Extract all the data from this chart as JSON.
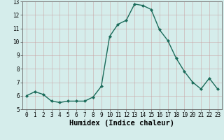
{
  "x": [
    0,
    1,
    2,
    3,
    4,
    5,
    6,
    7,
    8,
    9,
    10,
    11,
    12,
    13,
    14,
    15,
    16,
    17,
    18,
    19,
    20,
    21,
    22,
    23
  ],
  "y": [
    6.0,
    6.3,
    6.1,
    5.6,
    5.5,
    5.6,
    5.6,
    5.6,
    5.9,
    6.7,
    10.4,
    11.3,
    11.6,
    12.8,
    12.7,
    12.4,
    10.9,
    10.1,
    8.8,
    7.8,
    7.0,
    6.5,
    7.3,
    6.5
  ],
  "line_color": "#1a6b5a",
  "marker": "D",
  "marker_size": 2.0,
  "bg_color": "#d5edeb",
  "grid_color_major": "#c0d8d4",
  "grid_color_minor": "#c8dedd",
  "xlabel": "Humidex (Indice chaleur)",
  "ylim": [
    5,
    13
  ],
  "xlim": [
    -0.5,
    23.5
  ],
  "yticks": [
    5,
    6,
    7,
    8,
    9,
    10,
    11,
    12,
    13
  ],
  "xticks": [
    0,
    1,
    2,
    3,
    4,
    5,
    6,
    7,
    8,
    9,
    10,
    11,
    12,
    13,
    14,
    15,
    16,
    17,
    18,
    19,
    20,
    21,
    22,
    23
  ],
  "tick_fontsize": 5.5,
  "xlabel_fontsize": 7.5,
  "spine_color": "#666666",
  "line_width": 1.0
}
